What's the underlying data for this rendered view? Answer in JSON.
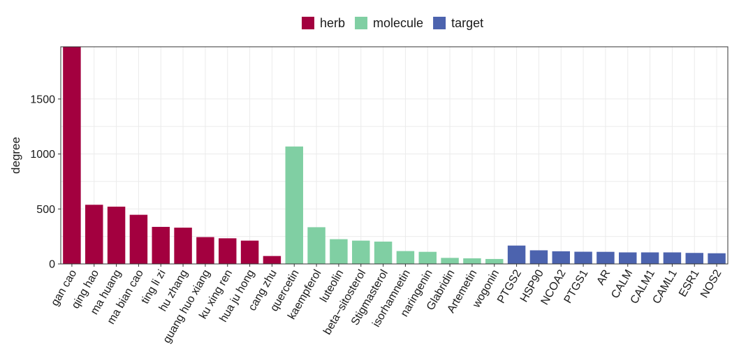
{
  "chart_data": {
    "type": "bar",
    "title": "",
    "xlabel": "",
    "ylabel": "degree",
    "ylim": [
      0,
      1975
    ],
    "yticks": [
      0,
      500,
      1000,
      1500
    ],
    "grid": true,
    "legend_position": "top",
    "legend": [
      {
        "name": "herb",
        "color": "#a3003f"
      },
      {
        "name": "molecule",
        "color": "#80cfa3"
      },
      {
        "name": "target",
        "color": "#4c63ae"
      }
    ],
    "categories": [
      "gan cao",
      "qing hao",
      "ma huang",
      "ma bian cao",
      "ting li zi",
      "hu zhang",
      "guang huo xiang",
      "ku xing ren",
      "hua ju hong",
      "cang zhu",
      "quercetin",
      "kaempferol",
      "luteolin",
      "beta−sitosterol",
      "Stigmasterol",
      "isorhamnetin",
      "naringenin",
      "Glabridin",
      "Artemetin",
      "wogonin",
      "PTGS2",
      "HSP90",
      "NCOA2",
      "PTGS1",
      "AR",
      "CALM",
      "CALM1",
      "CAML1",
      "ESR1",
      "NOS2"
    ],
    "values": [
      1975,
      538,
      521,
      447,
      337,
      330,
      244,
      233,
      212,
      72,
      1068,
      334,
      225,
      212,
      203,
      117,
      110,
      55,
      51,
      45,
      167,
      124,
      115,
      111,
      110,
      105,
      105,
      105,
      100,
      97
    ],
    "groups": [
      "herb",
      "herb",
      "herb",
      "herb",
      "herb",
      "herb",
      "herb",
      "herb",
      "herb",
      "herb",
      "molecule",
      "molecule",
      "molecule",
      "molecule",
      "molecule",
      "molecule",
      "molecule",
      "molecule",
      "molecule",
      "molecule",
      "target",
      "target",
      "target",
      "target",
      "target",
      "target",
      "target",
      "target",
      "target",
      "target"
    ]
  }
}
